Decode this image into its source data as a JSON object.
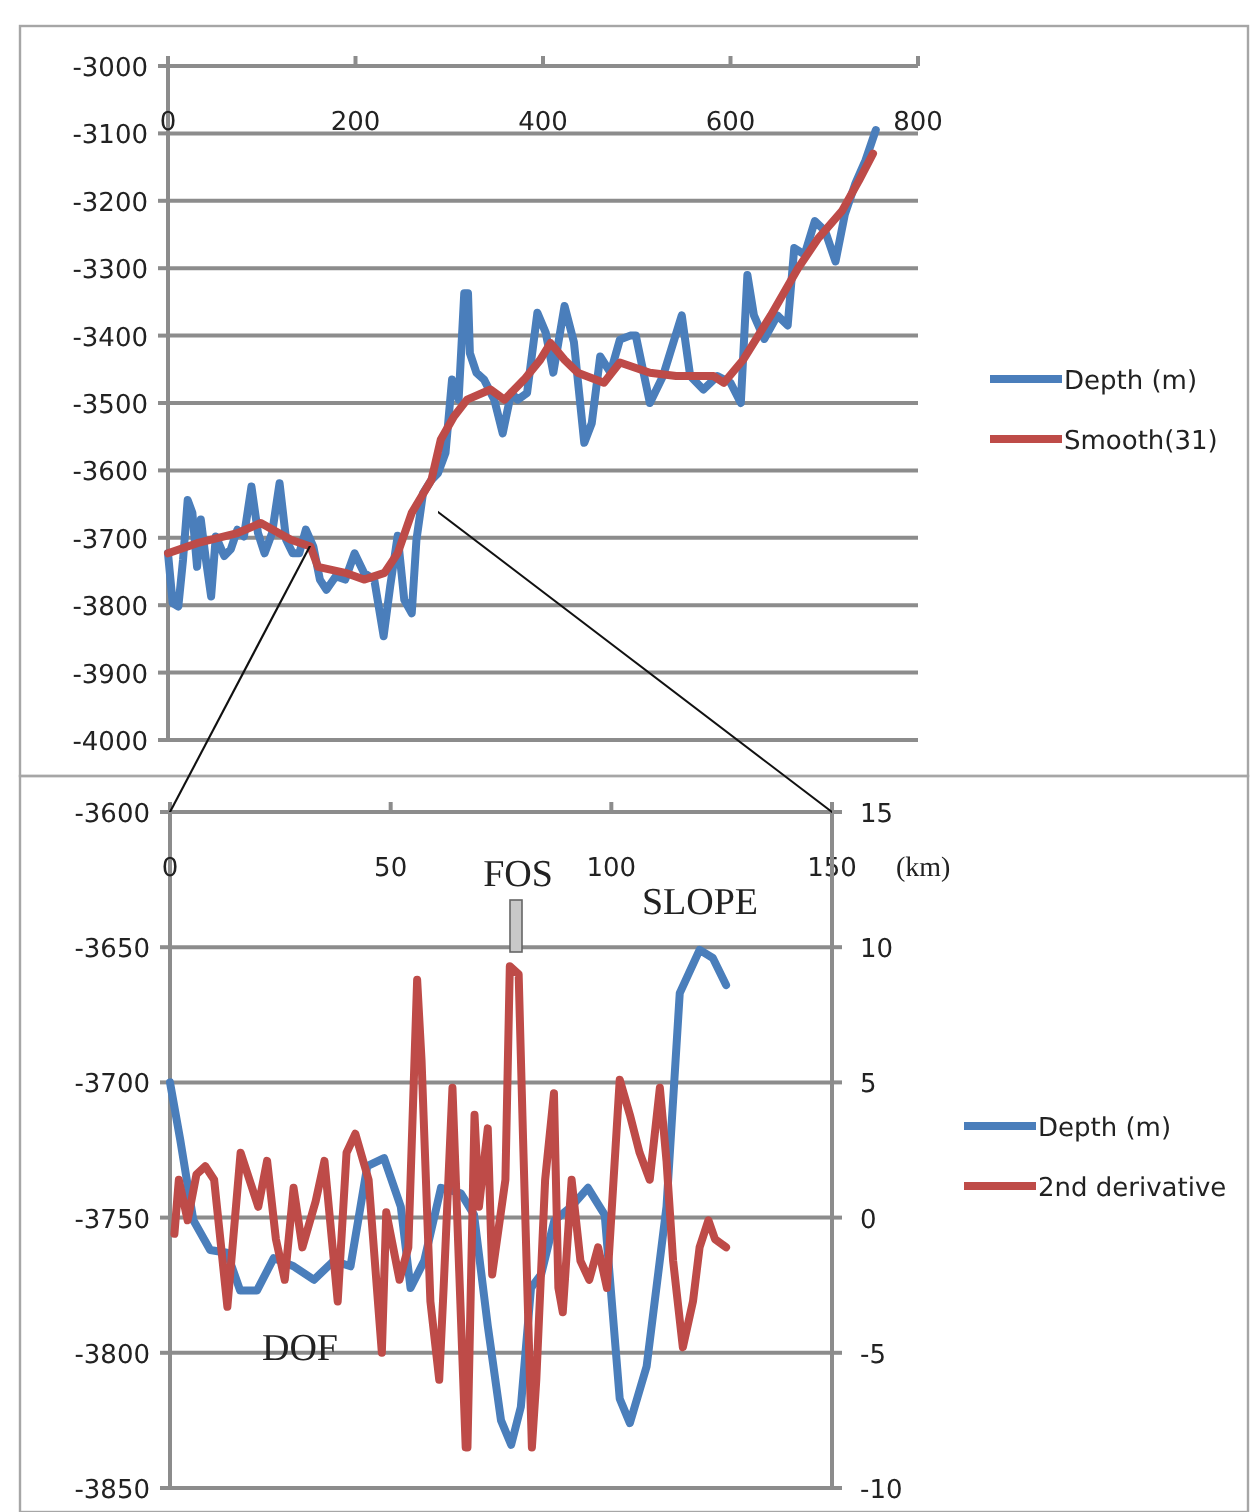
{
  "chart_data": [
    {
      "type": "line",
      "xlim": [
        0,
        800
      ],
      "xticks": [
        0,
        200,
        400,
        600,
        800
      ],
      "ylim": [
        -4000,
        -3000
      ],
      "yticks": [
        -4000,
        -3900,
        -3800,
        -3700,
        -3600,
        -3500,
        -3400,
        -3300,
        -3200,
        -3100,
        -3000
      ],
      "grid": "y",
      "legend": "right",
      "series": [
        {
          "name": "Depth (m)",
          "color": "#4a7ebb",
          "x": [
            0,
            5,
            11,
            16,
            21,
            26,
            31,
            35,
            40,
            46,
            51,
            60,
            67,
            74,
            81,
            89,
            96,
            103,
            111,
            119,
            126,
            133,
            140,
            147,
            155,
            162,
            169,
            179,
            189,
            199,
            209,
            220,
            230,
            237,
            245,
            252,
            260,
            265,
            272,
            281,
            288,
            296,
            303,
            310,
            316,
            320,
            322,
            329,
            337,
            348,
            357,
            366,
            373,
            383,
            394,
            403,
            411,
            423,
            433,
            444,
            452,
            461,
            472,
            482,
            493,
            499,
            514,
            528,
            548,
            557,
            571,
            586,
            600,
            611,
            618,
            625,
            636,
            650,
            661,
            668,
            679,
            690,
            701,
            712,
            722,
            733,
            744,
            755
          ],
          "values": [
            -3723,
            -3797,
            -3802,
            -3733,
            -3644,
            -3663,
            -3743,
            -3673,
            -3728,
            -3787,
            -3698,
            -3727,
            -3717,
            -3688,
            -3698,
            -3624,
            -3693,
            -3723,
            -3693,
            -3619,
            -3703,
            -3723,
            -3723,
            -3688,
            -3713,
            -3762,
            -3777,
            -3757,
            -3762,
            -3723,
            -3752,
            -3762,
            -3846,
            -3772,
            -3697,
            -3792,
            -3812,
            -3703,
            -3634,
            -3614,
            -3604,
            -3574,
            -3465,
            -3495,
            -3337,
            -3337,
            -3426,
            -3455,
            -3465,
            -3495,
            -3545,
            -3485,
            -3495,
            -3485,
            -3366,
            -3396,
            -3455,
            -3356,
            -3410,
            -3559,
            -3530,
            -3431,
            -3455,
            -3406,
            -3400,
            -3400,
            -3500,
            -3460,
            -3370,
            -3460,
            -3480,
            -3460,
            -3470,
            -3500,
            -3310,
            -3370,
            -3405,
            -3370,
            -3385,
            -3270,
            -3280,
            -3230,
            -3245,
            -3290,
            -3220,
            -3175,
            -3140,
            -3095
          ]
        },
        {
          "name": "Smooth(31)",
          "color": "#be4b48",
          "x": [
            0,
            31,
            74,
            99,
            131,
            152,
            160,
            189,
            209,
            231,
            245,
            260,
            281,
            291,
            305,
            319,
            344,
            359,
            380,
            397,
            408,
            423,
            437,
            465,
            482,
            514,
            542,
            582,
            593,
            614,
            643,
            672,
            694,
            719,
            737,
            752
          ],
          "values": [
            -3723,
            -3708,
            -3693,
            -3678,
            -3703,
            -3713,
            -3743,
            -3752,
            -3762,
            -3752,
            -3723,
            -3663,
            -3614,
            -3554,
            -3520,
            -3495,
            -3480,
            -3495,
            -3465,
            -3436,
            -3411,
            -3436,
            -3455,
            -3470,
            -3440,
            -3455,
            -3460,
            -3460,
            -3470,
            -3435,
            -3370,
            -3300,
            -3255,
            -3215,
            -3170,
            -3130
          ]
        }
      ]
    },
    {
      "type": "line",
      "xlabel": "(km)",
      "xlim": [
        0,
        150
      ],
      "xticks": [
        0,
        50,
        100,
        150
      ],
      "ylim": [
        -3850,
        -3600
      ],
      "yticks": [
        -3850,
        -3800,
        -3750,
        -3700,
        -3650,
        -3600
      ],
      "y2lim": [
        -10,
        15
      ],
      "y2ticks": [
        -10,
        -5,
        0,
        5,
        10,
        15
      ],
      "grid": "y",
      "legend": "right",
      "annotations": [
        "FOS",
        "DOF",
        "SLOPE"
      ],
      "series": [
        {
          "name": "Depth (m)",
          "color": "#4a7ebb",
          "x": [
            0,
            2.3,
            5.3,
            9.1,
            12.9,
            15.9,
            19.7,
            23.5,
            28,
            32.6,
            37.1,
            40.9,
            44.7,
            48.5,
            52.3,
            54.5,
            57.6,
            61.4,
            65.9,
            68.9,
            72,
            75,
            77.3,
            79.5,
            81.8,
            84.1,
            87.1,
            90.9,
            94.7,
            98.5,
            101.9,
            104.2,
            108,
            112.5,
            115.5,
            120,
            123,
            126
          ],
          "values": [
            -3700,
            -3721,
            -3751,
            -3762,
            -3763,
            -3777,
            -3777,
            -3765,
            -3768,
            -3773,
            -3766,
            -3768,
            -3731,
            -3728,
            -3746,
            -3776,
            -3766,
            -3739,
            -3741,
            -3749,
            -3790,
            -3825,
            -3834,
            -3820,
            -3776,
            -3771,
            -3751,
            -3746,
            -3739,
            -3749,
            -3817,
            -3826,
            -3805,
            -3746,
            -3667,
            -3651,
            -3654,
            -3664
          ]
        },
        {
          "name": "2nd derivative",
          "color": "#be4b48",
          "axis": "y2",
          "x": [
            1,
            2,
            4,
            6,
            8,
            10,
            13,
            16,
            18,
            20,
            22,
            24,
            26,
            28,
            30,
            33,
            35,
            38,
            40,
            42,
            45,
            48,
            49,
            52,
            54,
            56,
            57,
            59,
            61,
            62,
            64,
            67,
            67.4,
            69,
            70,
            72,
            73,
            76,
            77,
            79,
            80,
            82,
            83,
            85,
            87,
            88,
            89,
            91,
            93,
            95,
            97,
            99,
            101.9,
            104.2,
            106.4,
            108.7,
            111,
            112.5,
            114,
            116.2,
            118.5,
            120,
            122,
            123.5,
            126
          ],
          "values": [
            -0.6,
            1.4,
            -0.1,
            1.6,
            1.9,
            1.4,
            -3.3,
            2.4,
            1.4,
            0.4,
            2.1,
            -0.8,
            -2.3,
            1.1,
            -1.1,
            0.6,
            2.1,
            -3.1,
            2.4,
            3.1,
            1.4,
            -5,
            0.2,
            -2.3,
            -1.1,
            8.8,
            5.8,
            -3.1,
            -6,
            -2.6,
            4.8,
            -8.5,
            -8.5,
            3.8,
            0.4,
            3.3,
            -2.1,
            1.4,
            9.3,
            9,
            2.9,
            -8.5,
            -6,
            1.4,
            4.6,
            -2.6,
            -3.5,
            1.4,
            -1.6,
            -2.3,
            -1.1,
            -2.6,
            5.1,
            3.8,
            2.4,
            1.4,
            4.8,
            2.1,
            -1.6,
            -4.8,
            -3.1,
            -1.1,
            -0.1,
            -0.8,
            -1.1
          ]
        }
      ]
    }
  ]
}
